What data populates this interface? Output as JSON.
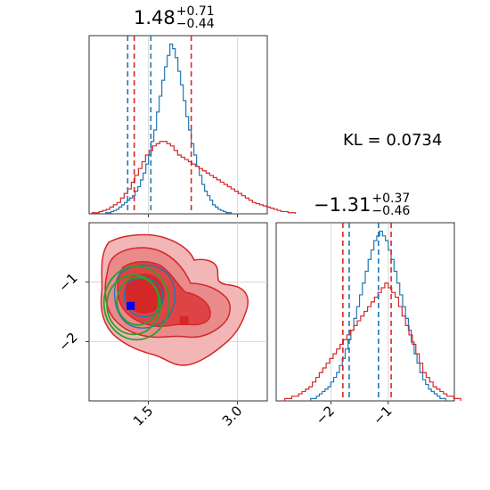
{
  "chart_data": [
    {
      "type": "histogram",
      "panel": "top-left",
      "title": {
        "value": "1.48",
        "plus": "+0.71",
        "minus": "−0.44"
      },
      "xlim": [
        0.5,
        3.5
      ],
      "x_ticks": [
        1.5,
        3.0
      ],
      "series": [
        {
          "color": "#1f77b4",
          "edges_start": 0.78,
          "bin_width": 0.045,
          "counts": [
            1,
            1,
            2,
            3,
            4,
            6,
            8,
            10,
            12,
            14,
            16,
            20,
            24,
            30,
            36,
            44,
            52,
            64,
            74,
            90,
            104,
            118,
            130,
            140,
            150,
            146,
            138,
            126,
            114,
            100,
            86,
            74,
            62,
            52,
            42,
            34,
            26,
            20,
            16,
            12,
            8,
            6,
            4,
            3,
            2,
            1,
            1
          ],
          "quantiles": [
            1.15,
            1.54
          ]
        },
        {
          "color": "#d62728",
          "edges_start": 0.55,
          "bin_width": 0.06,
          "counts": [
            1,
            1,
            2,
            3,
            4,
            6,
            8,
            10,
            14,
            18,
            22,
            28,
            34,
            40,
            46,
            52,
            56,
            60,
            62,
            64,
            64,
            62,
            60,
            56,
            52,
            50,
            48,
            46,
            44,
            42,
            40,
            38,
            36,
            34,
            32,
            30,
            28,
            26,
            24,
            22,
            20,
            18,
            16,
            14,
            12,
            10,
            9,
            8,
            7,
            6,
            5,
            4,
            3,
            2,
            2,
            1,
            1
          ],
          "quantiles": [
            1.26,
            2.22
          ]
        }
      ]
    },
    {
      "type": "histogram",
      "panel": "bottom-right",
      "title": {
        "value": "−1.31",
        "plus": "+0.37",
        "minus": "−0.46"
      },
      "xlim": [
        -2.95,
        0.15
      ],
      "x_ticks": [
        -2,
        -1
      ],
      "x_tick_labels": [
        "−2",
        "−1"
      ],
      "series": [
        {
          "color": "#1f77b4",
          "edges_start": -2.35,
          "bin_width": 0.05,
          "counts": [
            1,
            1,
            2,
            3,
            4,
            5,
            6,
            8,
            10,
            12,
            15,
            18,
            22,
            26,
            30,
            35,
            40,
            45,
            50,
            55,
            60,
            64,
            68,
            70,
            72,
            70,
            68,
            64,
            60,
            55,
            50,
            45,
            40,
            35,
            30,
            25,
            20,
            16,
            12,
            9,
            7,
            5,
            4,
            3,
            2,
            1,
            1
          ],
          "quantiles": [
            -1.68,
            -1.17
          ]
        },
        {
          "color": "#d62728",
          "edges_start": -2.8,
          "bin_width": 0.06,
          "counts": [
            1,
            1,
            2,
            2,
            3,
            4,
            5,
            6,
            8,
            10,
            12,
            14,
            16,
            18,
            20,
            22,
            24,
            26,
            28,
            30,
            32,
            34,
            36,
            38,
            40,
            42,
            44,
            46,
            48,
            50,
            48,
            46,
            44,
            40,
            36,
            32,
            28,
            24,
            20,
            16,
            12,
            10,
            8,
            6,
            5,
            4,
            3,
            2,
            2,
            1,
            1
          ],
          "quantiles": [
            -1.79,
            -0.95
          ]
        }
      ]
    },
    {
      "type": "contour",
      "panel": "bottom-left",
      "xlim": [
        0.5,
        3.5
      ],
      "ylim": [
        -3.0,
        0.0
      ],
      "x_ticks": [
        1.5,
        3.0
      ],
      "x_tick_labels": [
        "1.5",
        "3.0"
      ],
      "y_ticks": [
        -1,
        -2
      ],
      "y_tick_labels": [
        "−1",
        "−2"
      ],
      "red_markers": [
        {
          "x": 1.2,
          "y": -1.1
        },
        {
          "x": 2.1,
          "y": -1.65
        }
      ],
      "blue_marker": {
        "x": 1.2,
        "y": -1.4
      },
      "green_ellipses": [
        {
          "cx": 1.3,
          "cy": -1.35,
          "rx": 0.55,
          "ry": 0.62
        },
        {
          "cx": 1.25,
          "cy": -1.38,
          "rx": 0.45,
          "ry": 0.5
        },
        {
          "cx": 1.32,
          "cy": -1.32,
          "rx": 0.35,
          "ry": 0.4
        }
      ],
      "colors": {
        "red": "#d62728",
        "blue": "#1f77b4",
        "green": "#2ca02c"
      }
    }
  ],
  "kl": {
    "label": "KL = 0.0734"
  }
}
